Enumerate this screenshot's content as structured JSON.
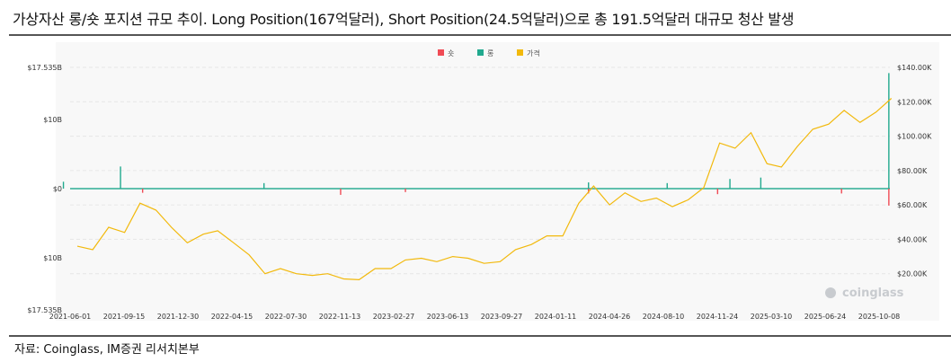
{
  "title": "가상자산 롱/숏 포지션 규모 추이. Long Position(167억달러), Short Position(24.5억달러)으로 총 191.5억달러 대규모 청산 발생",
  "source": "자료: Coinglass, IM증권 리서치본부",
  "watermark": "coinglass",
  "colors": {
    "short": "#f04b55",
    "long": "#21a98e",
    "price": "#f2b90c"
  },
  "chart_data": {
    "type": "bar+line",
    "legend": [
      "숏",
      "롱",
      "가격"
    ],
    "legend_position": "top-center",
    "grid": true,
    "x_ticks": [
      "2021-06-01",
      "2021-09-15",
      "2021-12-30",
      "2022-04-15",
      "2022-07-30",
      "2022-11-13",
      "2023-02-27",
      "2023-06-13",
      "2023-09-27",
      "2024-01-11",
      "2024-04-26",
      "2024-08-10",
      "2024-11-24",
      "2025-03-10",
      "2025-06-24",
      "2025-10-08"
    ],
    "y_left": {
      "ticks": [
        "$17.535B",
        "$10B",
        "$0",
        "$10B",
        "$17.535B"
      ],
      "range_billion_usd": [
        -17.535,
        17.535
      ]
    },
    "y_right": {
      "ticks": [
        "$140.00K",
        "$120.00K",
        "$100.00K",
        "$80.00K",
        "$60.00K",
        "$40.00K",
        "$20.00K"
      ],
      "range_k_usd": [
        0,
        140
      ]
    },
    "price_k_usd": {
      "x": [
        "2021-06",
        "2021-07",
        "2021-08",
        "2021-09",
        "2021-10",
        "2021-11",
        "2021-12",
        "2022-01",
        "2022-02",
        "2022-03",
        "2022-04",
        "2022-05",
        "2022-06",
        "2022-07",
        "2022-08",
        "2022-09",
        "2022-10",
        "2022-11",
        "2022-12",
        "2023-01",
        "2023-02",
        "2023-03",
        "2023-04",
        "2023-05",
        "2023-06",
        "2023-07",
        "2023-08",
        "2023-09",
        "2023-10",
        "2023-11",
        "2023-12",
        "2024-01",
        "2024-02",
        "2024-03",
        "2024-04",
        "2024-05",
        "2024-06",
        "2024-07",
        "2024-08",
        "2024-09",
        "2024-10",
        "2024-11",
        "2024-12",
        "2025-01",
        "2025-02",
        "2025-03",
        "2025-04",
        "2025-05",
        "2025-06",
        "2025-07",
        "2025-08",
        "2025-09",
        "2025-10"
      ],
      "y": [
        36,
        34,
        47,
        44,
        61,
        57,
        47,
        38,
        43,
        45,
        38,
        31,
        20,
        23,
        20,
        19,
        20,
        17,
        16.5,
        23,
        23,
        28,
        29,
        27,
        30,
        29,
        26,
        27,
        34,
        37,
        42,
        42,
        61,
        71,
        60,
        67,
        62,
        64,
        59,
        63,
        70,
        96,
        93,
        102,
        84,
        82,
        94,
        104,
        107,
        115,
        108,
        114,
        122
      ]
    },
    "series": [
      {
        "name": "롱",
        "unit": "billion USD",
        "points": [
          [
            "2021-09-07",
            3.2
          ],
          [
            "2021-05-19",
            1.0
          ],
          [
            "2022-06-13",
            0.8
          ],
          [
            "2024-03-05",
            0.9
          ],
          [
            "2024-08-05",
            0.8
          ],
          [
            "2024-12-05",
            1.4
          ],
          [
            "2025-02-03",
            1.6
          ],
          [
            "2025-10-10",
            16.7
          ]
        ]
      },
      {
        "name": "숏",
        "unit": "billion USD",
        "points": [
          [
            "2021-10-20",
            -0.6
          ],
          [
            "2022-11-09",
            -0.9
          ],
          [
            "2023-03-15",
            -0.5
          ],
          [
            "2024-03-05",
            -0.7
          ],
          [
            "2024-11-11",
            -0.8
          ],
          [
            "2025-07-10",
            -0.7
          ],
          [
            "2025-10-10",
            -2.45
          ]
        ]
      }
    ]
  }
}
